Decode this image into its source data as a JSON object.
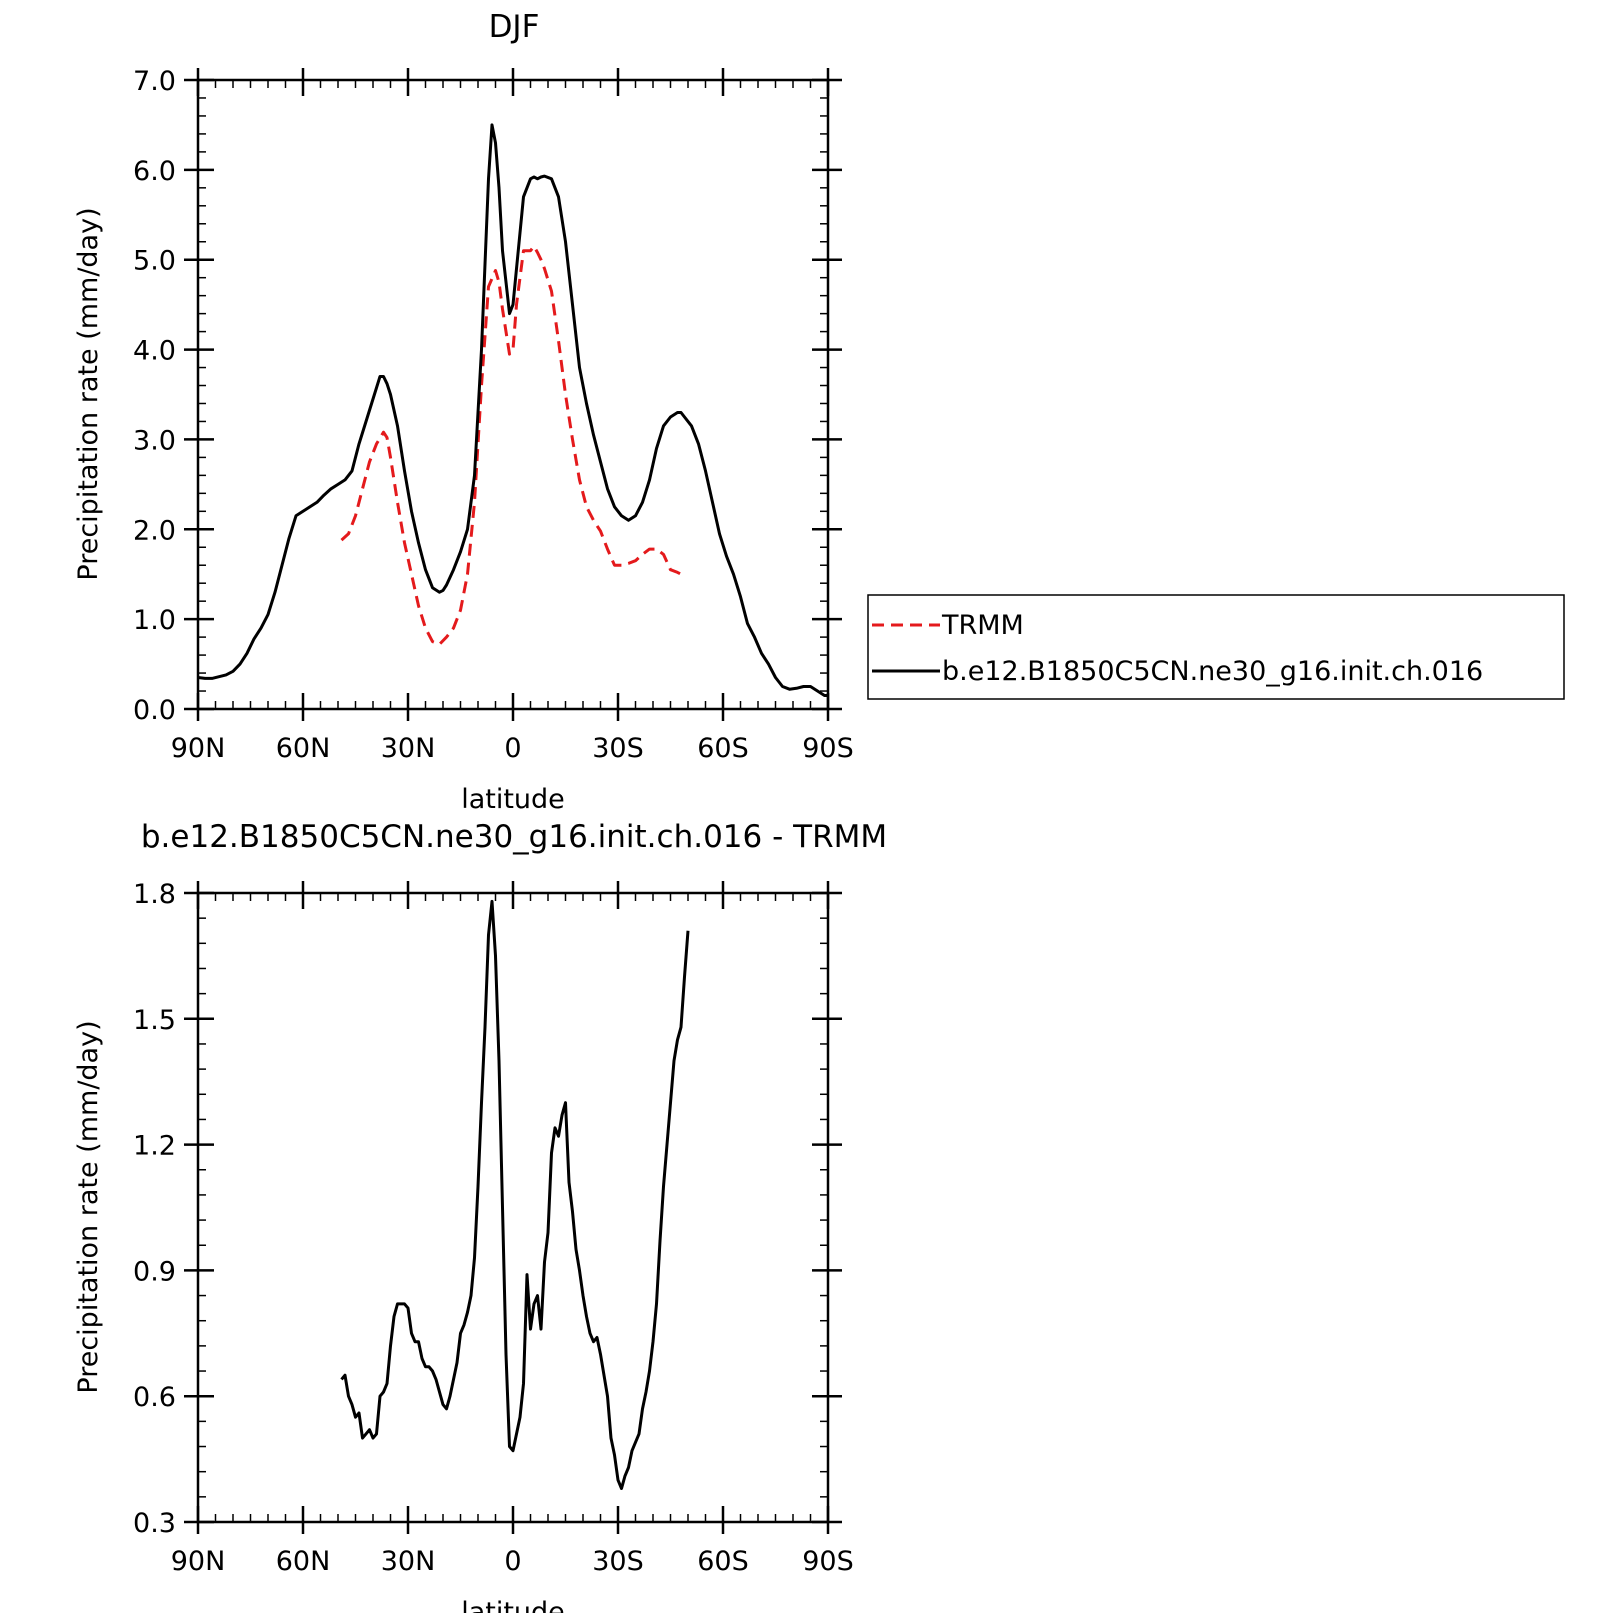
{
  "chart_data": [
    {
      "type": "line",
      "title": "DJF",
      "xlabel": "latitude",
      "ylabel": "Precipitation rate (mm/day)",
      "xlim": [
        -90,
        90
      ],
      "ylim": [
        0,
        7
      ],
      "x_ticks": [
        -90,
        -60,
        -30,
        0,
        30,
        60,
        90
      ],
      "x_tick_labels": [
        "90N",
        "60N",
        "30N",
        "0",
        "30S",
        "60S",
        "90S"
      ],
      "y_ticks": [
        0,
        1,
        2,
        3,
        4,
        5,
        6,
        7
      ],
      "y_tick_labels": [
        "0.0",
        "1.0",
        "2.0",
        "3.0",
        "4.0",
        "5.0",
        "6.0",
        "7.0"
      ],
      "legend_position": "right",
      "series": [
        {
          "name": "TRMM",
          "color": "#e41a1c",
          "dash": "dashed",
          "x": [
            -49,
            -47,
            -45,
            -43,
            -41,
            -39,
            -37,
            -36,
            -35,
            -33,
            -31,
            -29,
            -27,
            -25,
            -23,
            -21,
            -19,
            -17,
            -15,
            -13,
            -11,
            -9,
            -7,
            -5,
            -4,
            -3,
            -1,
            0,
            1,
            3,
            5,
            6,
            7,
            8,
            9,
            11,
            13,
            15,
            17,
            19,
            21,
            23,
            25,
            27,
            29,
            31,
            33,
            35,
            37,
            39,
            41,
            43,
            45,
            47,
            48,
            49
          ],
          "y": [
            1.88,
            1.95,
            2.15,
            2.45,
            2.75,
            2.95,
            3.08,
            3.02,
            2.8,
            2.3,
            1.85,
            1.5,
            1.15,
            0.9,
            0.75,
            0.72,
            0.8,
            0.9,
            1.1,
            1.5,
            2.3,
            3.6,
            4.7,
            4.88,
            4.75,
            4.45,
            3.95,
            4.0,
            4.5,
            5.1,
            5.1,
            5.15,
            5.08,
            5.0,
            4.9,
            4.65,
            4.1,
            3.5,
            3.0,
            2.55,
            2.25,
            2.1,
            1.98,
            1.78,
            1.6,
            1.6,
            1.62,
            1.65,
            1.72,
            1.78,
            1.78,
            1.72,
            1.55,
            1.52,
            1.5,
            1.5
          ]
        },
        {
          "name": "b.e12.B1850C5CN.ne30_g16.init.ch.016",
          "color": "#000000",
          "dash": "solid",
          "x": [
            -90,
            -88,
            -86,
            -84,
            -82,
            -80,
            -78,
            -76,
            -74,
            -72,
            -70,
            -68,
            -66,
            -64,
            -62,
            -60,
            -58,
            -56,
            -54,
            -52,
            -50,
            -48,
            -46,
            -44,
            -42,
            -40,
            -38,
            -37,
            -36,
            -35,
            -33,
            -31,
            -29,
            -27,
            -25,
            -23,
            -21,
            -20,
            -19,
            -17,
            -15,
            -13,
            -11,
            -9,
            -7,
            -6,
            -5,
            -4,
            -3,
            -1,
            0,
            1,
            3,
            5,
            6,
            7,
            8,
            9,
            11,
            13,
            15,
            17,
            19,
            21,
            23,
            25,
            27,
            29,
            31,
            33,
            35,
            37,
            39,
            41,
            43,
            45,
            47,
            48,
            49,
            51,
            53,
            55,
            57,
            59,
            61,
            63,
            65,
            67,
            69,
            71,
            73,
            75,
            77,
            79,
            81,
            83,
            85,
            87,
            89,
            90
          ],
          "y": [
            0.35,
            0.34,
            0.34,
            0.36,
            0.38,
            0.42,
            0.5,
            0.62,
            0.78,
            0.9,
            1.05,
            1.3,
            1.6,
            1.9,
            2.15,
            2.2,
            2.25,
            2.3,
            2.38,
            2.45,
            2.5,
            2.55,
            2.65,
            2.95,
            3.2,
            3.45,
            3.7,
            3.7,
            3.62,
            3.5,
            3.15,
            2.65,
            2.2,
            1.85,
            1.55,
            1.35,
            1.3,
            1.32,
            1.38,
            1.55,
            1.75,
            2.0,
            2.6,
            4.0,
            5.9,
            6.5,
            6.3,
            5.8,
            5.1,
            4.4,
            4.5,
            4.9,
            5.7,
            5.9,
            5.92,
            5.9,
            5.92,
            5.93,
            5.9,
            5.7,
            5.2,
            4.5,
            3.8,
            3.4,
            3.05,
            2.75,
            2.45,
            2.25,
            2.15,
            2.1,
            2.15,
            2.3,
            2.55,
            2.9,
            3.15,
            3.25,
            3.3,
            3.3,
            3.25,
            3.15,
            2.95,
            2.65,
            2.3,
            1.95,
            1.7,
            1.5,
            1.25,
            0.95,
            0.8,
            0.62,
            0.5,
            0.35,
            0.25,
            0.22,
            0.23,
            0.25,
            0.25,
            0.2,
            0.15,
            0.15
          ]
        }
      ]
    },
    {
      "type": "line",
      "title": "b.e12.B1850C5CN.ne30_g16.init.ch.016 - TRMM",
      "xlabel": "latitude",
      "ylabel": "Precipitation rate (mm/day)",
      "xlim": [
        -90,
        90
      ],
      "ylim": [
        0.3,
        1.8
      ],
      "x_ticks": [
        -90,
        -60,
        -30,
        0,
        30,
        60,
        90
      ],
      "x_tick_labels": [
        "90N",
        "60N",
        "30N",
        "0",
        "30S",
        "60S",
        "90S"
      ],
      "y_ticks": [
        0.3,
        0.6,
        0.9,
        1.2,
        1.5,
        1.8
      ],
      "y_tick_labels": [
        "0.3",
        "0.6",
        "0.9",
        "1.2",
        "1.5",
        "1.8"
      ],
      "series": [
        {
          "color": "#000000",
          "dash": "solid",
          "x": [
            -49,
            -48,
            -47,
            -46,
            -45,
            -44,
            -43,
            -42,
            -41,
            -40,
            -39,
            -38,
            -37,
            -36,
            -35,
            -34,
            -33,
            -32,
            -31,
            -30,
            -29,
            -28,
            -27,
            -26,
            -25,
            -24,
            -23,
            -22,
            -21,
            -20,
            -19,
            -18,
            -17,
            -16,
            -15,
            -14,
            -13,
            -12,
            -11,
            -10,
            -9,
            -8,
            -7,
            -6,
            -5,
            -4,
            -3,
            -2,
            -1,
            0,
            1,
            2,
            3,
            4,
            5,
            6,
            7,
            8,
            9,
            10,
            11,
            12,
            13,
            14,
            15,
            16,
            17,
            18,
            19,
            20,
            21,
            22,
            23,
            24,
            25,
            26,
            27,
            28,
            29,
            30,
            31,
            32,
            33,
            34,
            35,
            36,
            37,
            38,
            39,
            40,
            41,
            42,
            43,
            44,
            45,
            46,
            47,
            48,
            49,
            50
          ],
          "y": [
            0.64,
            0.65,
            0.6,
            0.58,
            0.55,
            0.56,
            0.5,
            0.51,
            0.52,
            0.5,
            0.51,
            0.6,
            0.61,
            0.63,
            0.72,
            0.79,
            0.82,
            0.82,
            0.82,
            0.81,
            0.75,
            0.73,
            0.73,
            0.69,
            0.67,
            0.67,
            0.66,
            0.64,
            0.61,
            0.58,
            0.57,
            0.6,
            0.64,
            0.68,
            0.75,
            0.77,
            0.8,
            0.84,
            0.93,
            1.1,
            1.3,
            1.48,
            1.7,
            1.78,
            1.65,
            1.4,
            1.05,
            0.7,
            0.48,
            0.47,
            0.51,
            0.55,
            0.63,
            0.89,
            0.76,
            0.82,
            0.84,
            0.76,
            0.92,
            0.99,
            1.18,
            1.24,
            1.22,
            1.27,
            1.3,
            1.11,
            1.04,
            0.95,
            0.9,
            0.84,
            0.79,
            0.75,
            0.73,
            0.74,
            0.7,
            0.65,
            0.6,
            0.5,
            0.46,
            0.4,
            0.38,
            0.41,
            0.43,
            0.47,
            0.49,
            0.51,
            0.57,
            0.61,
            0.66,
            0.73,
            0.82,
            0.97,
            1.1,
            1.2,
            1.3,
            1.4,
            1.45,
            1.48,
            1.6,
            1.71
          ]
        }
      ]
    }
  ]
}
